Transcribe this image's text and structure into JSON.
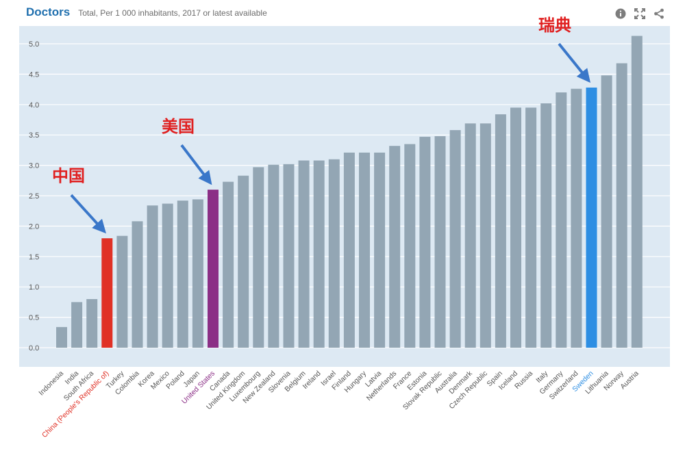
{
  "header": {
    "title": "Doctors",
    "subtitle": "Total, Per 1 000 inhabitants, 2017 or latest available"
  },
  "toolbar": {
    "info_icon": "info-icon",
    "expand_icon": "expand-icon",
    "share_icon": "share-icon"
  },
  "colors": {
    "plot_bg": "#dde9f3",
    "bar_default": "#93a6b4",
    "china": "#e03126",
    "united_states": "#8b2f86",
    "sweden": "#2d8ee3",
    "annotation_red": "#e02020",
    "arrow_blue": "#3a77c9"
  },
  "annotations": [
    {
      "text": "中国",
      "target": "China (People's Republic of)"
    },
    {
      "text": "美国",
      "target": "United States"
    },
    {
      "text": "瑞典",
      "target": "Sweden"
    }
  ],
  "chart_data": {
    "type": "bar",
    "title": "Doctors",
    "subtitle": "Total, Per 1 000 inhabitants, 2017 or latest available",
    "ylim": [
      0,
      5.2
    ],
    "yticks": [
      "0.0",
      "0.5",
      "1.0",
      "1.5",
      "2.0",
      "2.5",
      "3.0",
      "3.5",
      "4.0",
      "4.5",
      "5.0"
    ],
    "grid": true,
    "categories": [
      "Indonesia",
      "India",
      "South Africa",
      "China (People's Republic of)",
      "Turkey",
      "Colombia",
      "Korea",
      "Mexico",
      "Poland",
      "Japan",
      "United States",
      "Canada",
      "United Kingdom",
      "Luxembourg",
      "New Zealand",
      "Slovenia",
      "Belgium",
      "Ireland",
      "Israel",
      "Finland",
      "Hungary",
      "Latvia",
      "Netherlands",
      "France",
      "Estonia",
      "Slovak Republic",
      "Australia",
      "Denmark",
      "Czech Republic",
      "Spain",
      "Iceland",
      "Russia",
      "Italy",
      "Germany",
      "Switzerland",
      "Sweden",
      "Lithuania",
      "Norway",
      "Austria"
    ],
    "values": [
      0.34,
      0.75,
      0.8,
      1.8,
      1.84,
      2.08,
      2.34,
      2.37,
      2.42,
      2.44,
      2.6,
      2.73,
      2.83,
      2.97,
      3.01,
      3.02,
      3.08,
      3.08,
      3.1,
      3.21,
      3.21,
      3.21,
      3.32,
      3.35,
      3.47,
      3.48,
      3.58,
      3.69,
      3.69,
      3.84,
      3.95,
      3.95,
      4.02,
      4.2,
      4.26,
      4.28,
      4.48,
      4.68,
      5.13
    ],
    "highlights": {
      "China (People's Republic of)": "china",
      "United States": "united_states",
      "Sweden": "sweden"
    }
  }
}
